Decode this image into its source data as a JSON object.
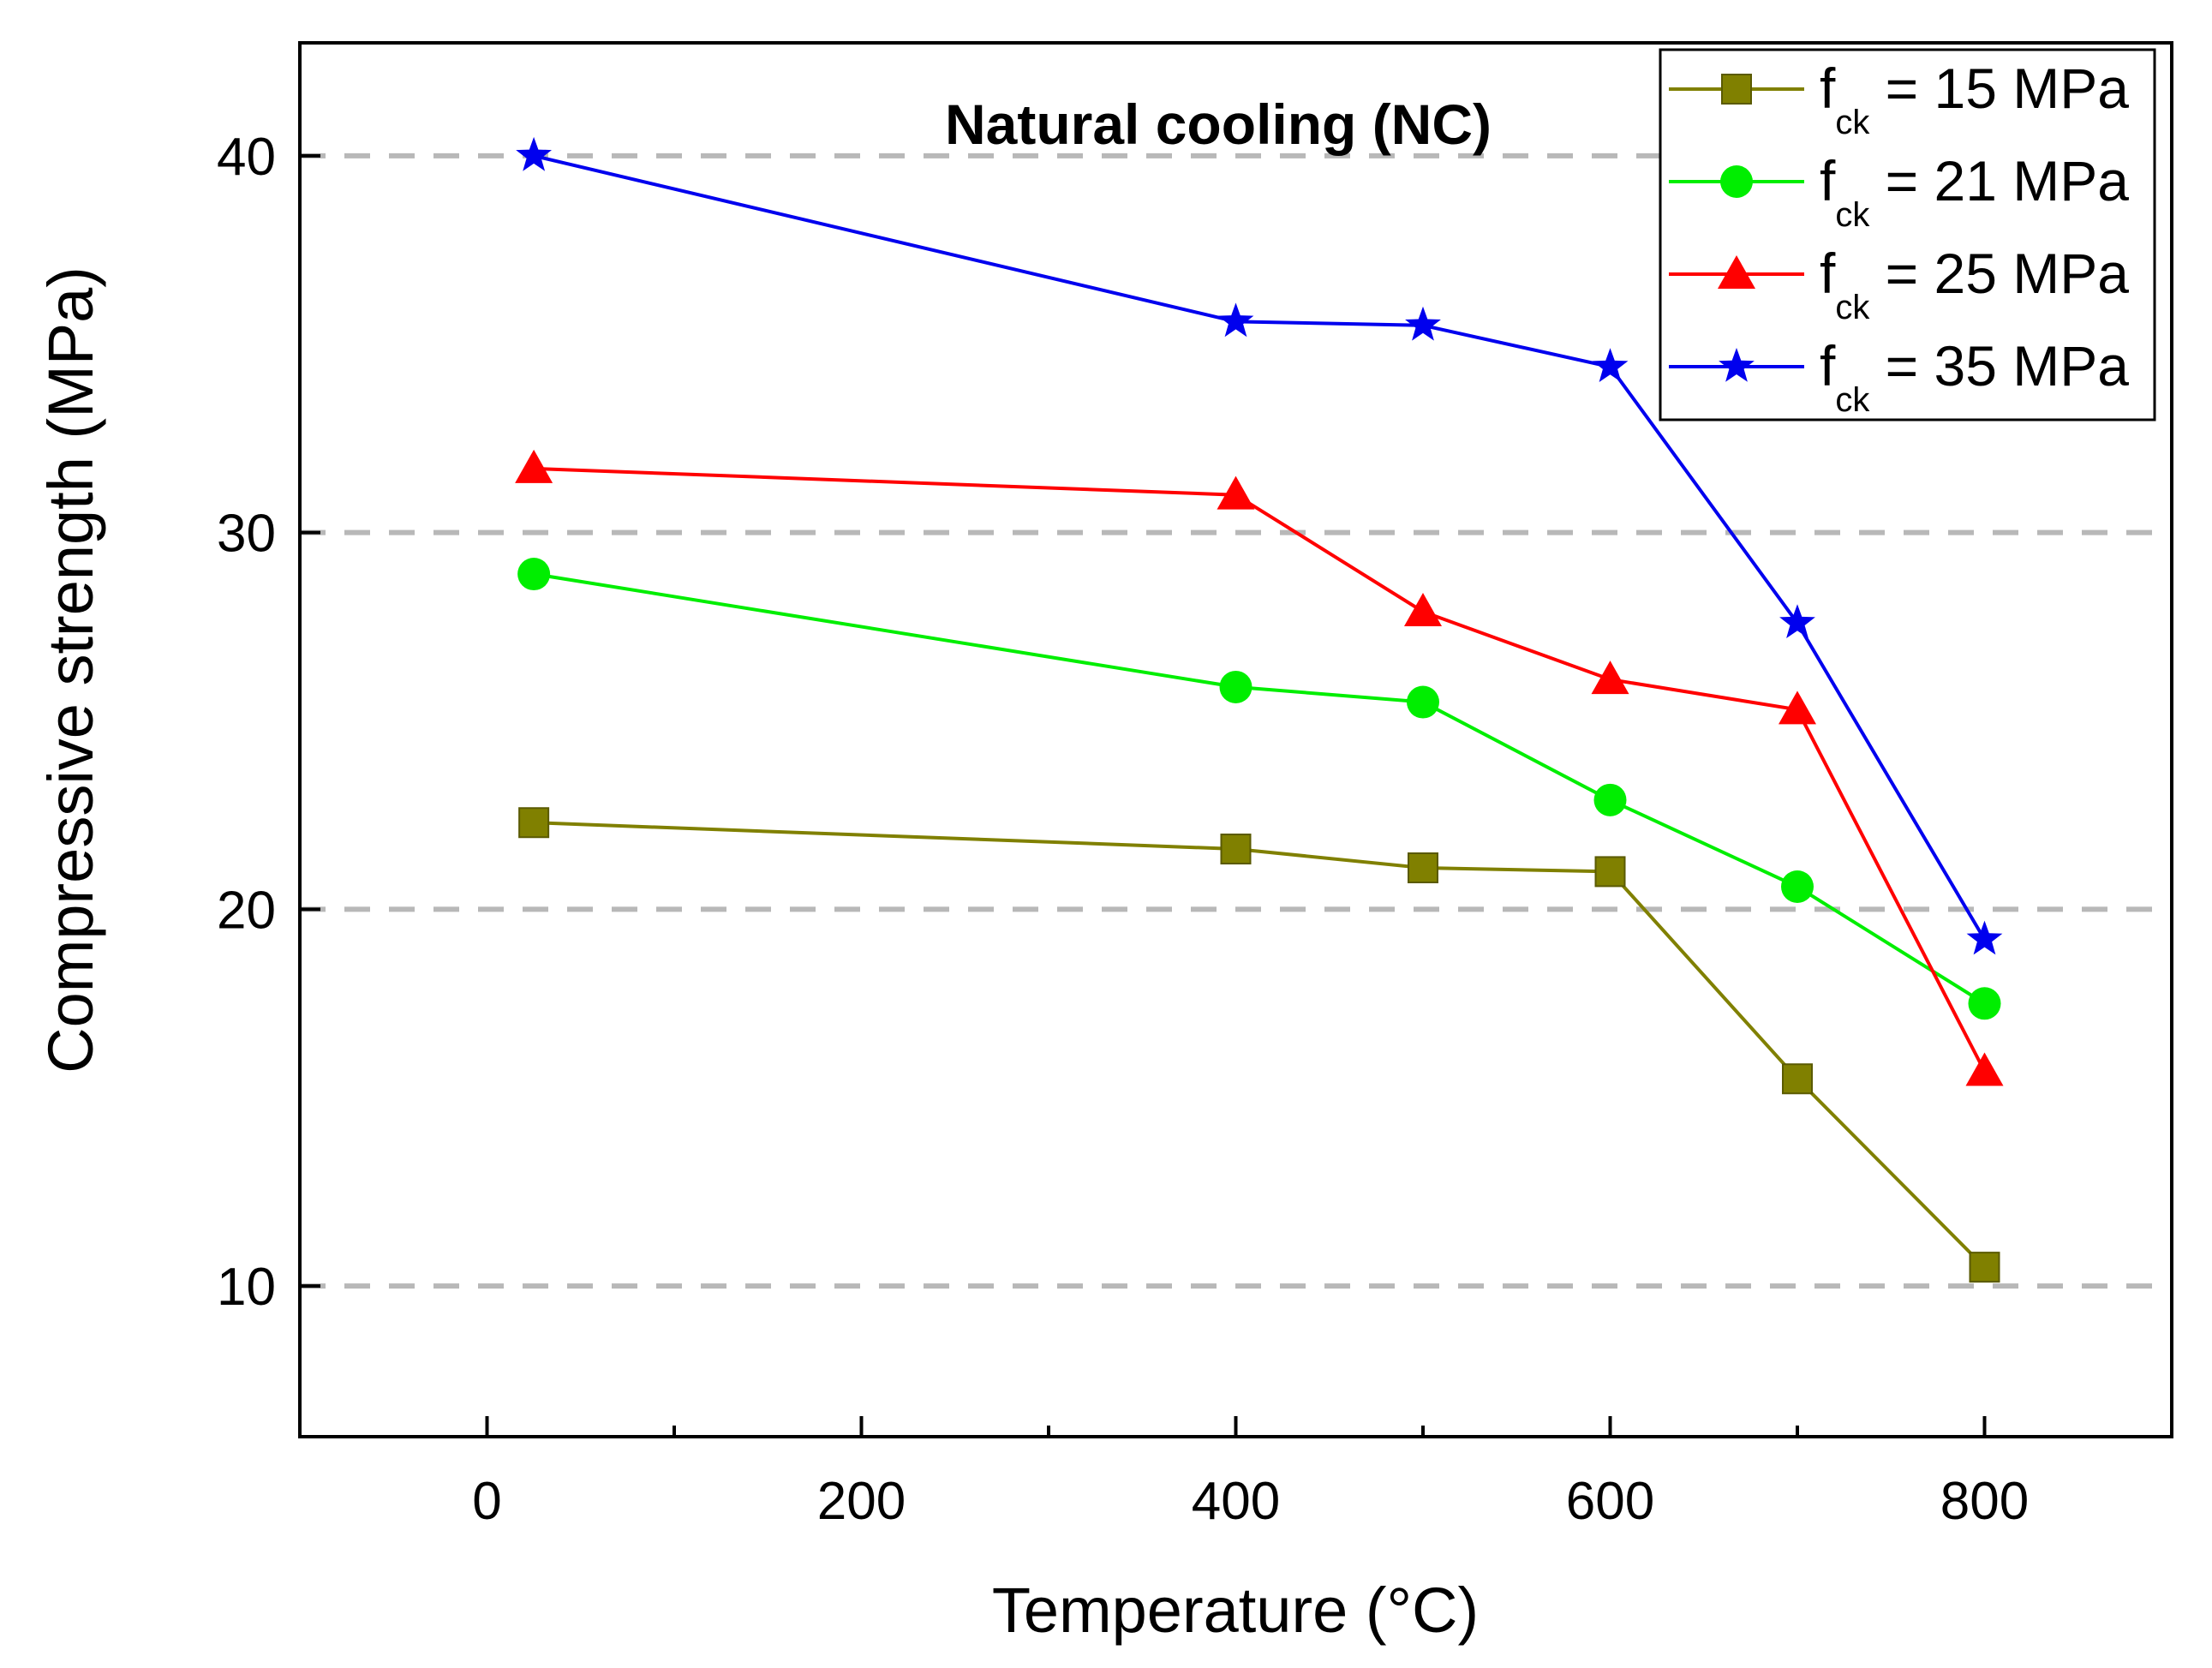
{
  "chart_data": {
    "type": "line",
    "title": "Natural cooling (NC)",
    "xlabel": "Temperature (°C)",
    "ylabel": "Compressive strength (MPa)",
    "xlim": [
      -100,
      900
    ],
    "ylim": [
      6,
      43
    ],
    "xticks": [
      0,
      200,
      400,
      600,
      800
    ],
    "xticks_minor": [
      100,
      300,
      500,
      700
    ],
    "yticks": [
      10,
      20,
      30,
      40
    ],
    "grid": "horizontal dashed at y ticks",
    "legend_position": "top-right",
    "series": [
      {
        "name_main": "f",
        "name_sub": "ck",
        "name_rest": " = 15 MPa",
        "color": "#808000",
        "marker": "square",
        "x": [
          25,
          400,
          500,
          600,
          700,
          800
        ],
        "y": [
          22.3,
          21.6,
          21.1,
          21.0,
          15.5,
          10.5
        ]
      },
      {
        "name_main": "f",
        "name_sub": "ck",
        "name_rest": " = 21 MPa",
        "color": "#00ee00",
        "marker": "circle",
        "x": [
          25,
          400,
          500,
          600,
          700,
          800
        ],
        "y": [
          28.9,
          25.9,
          25.5,
          22.9,
          20.6,
          17.5
        ]
      },
      {
        "name_main": "f",
        "name_sub": "ck",
        "name_rest": " = 25 MPa",
        "color": "#ff0000",
        "marker": "triangle",
        "x": [
          25,
          400,
          500,
          600,
          700,
          800
        ],
        "y": [
          31.7,
          31.0,
          27.9,
          26.1,
          25.3,
          15.7
        ]
      },
      {
        "name_main": "f",
        "name_sub": "ck",
        "name_rest": " = 35 MPa",
        "color": "#0000ee",
        "marker": "star",
        "x": [
          25,
          400,
          500,
          600,
          700,
          800
        ],
        "y": [
          40.0,
          35.6,
          35.5,
          34.4,
          27.6,
          19.2
        ]
      }
    ]
  }
}
